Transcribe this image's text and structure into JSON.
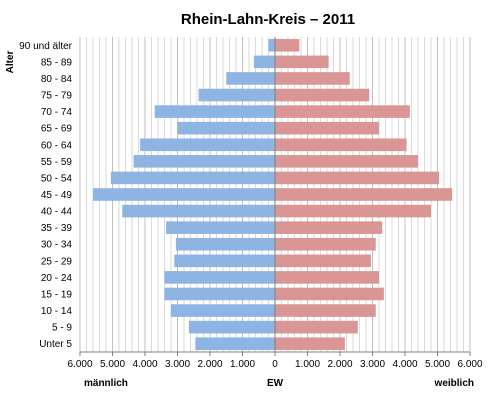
{
  "chart_data": {
    "type": "bar",
    "orientation": "horizontal",
    "title": "Rhein-Lahn-Kreis – 2011",
    "ylabel": "Alter",
    "xlabel": "EW",
    "left_label": "männlich",
    "right_label": "weiblich",
    "xlim": [
      -6000,
      6000
    ],
    "x_ticks": [
      "6.000",
      "5.000",
      "4.000",
      "3.000",
      "2.000",
      "1.000",
      "0",
      "1.000",
      "2.000",
      "3.000",
      "4.000",
      "5.000",
      "6.000"
    ],
    "grid": true,
    "categories": [
      "90 und älter",
      "85 - 89",
      "80 - 84",
      "75 - 79",
      "70 - 74",
      "65 - 69",
      "60 - 64",
      "55 - 59",
      "50 - 54",
      "45 - 49",
      "40 - 44",
      "35 - 39",
      "30 - 34",
      "25 - 29",
      "20 - 24",
      "15 - 19",
      "10 - 14",
      "5 - 9",
      "Unter 5"
    ],
    "series": [
      {
        "name": "männlich",
        "color": "#8db4e2",
        "values": [
          200,
          650,
          1500,
          2350,
          3700,
          3000,
          4150,
          4350,
          5050,
          5600,
          4700,
          3350,
          3050,
          3100,
          3400,
          3400,
          3200,
          2650,
          2450
        ]
      },
      {
        "name": "weiblich",
        "color": "#da9694",
        "values": [
          750,
          1650,
          2300,
          2900,
          4150,
          3200,
          4050,
          4400,
          5050,
          5450,
          4800,
          3300,
          3100,
          2950,
          3200,
          3350,
          3100,
          2550,
          2150
        ]
      }
    ]
  }
}
